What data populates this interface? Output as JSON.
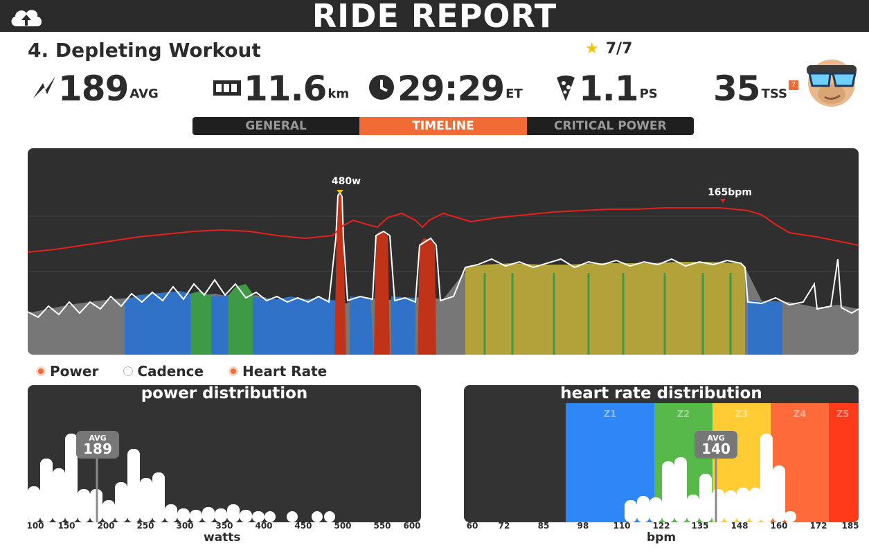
{
  "header": {
    "title": "RIDE REPORT"
  },
  "workout": {
    "name": "4. Depleting Workout",
    "stars": "7/7"
  },
  "stats": [
    {
      "value": "189",
      "unit": "AVG",
      "icon": "lightning-icon"
    },
    {
      "value": "11.6",
      "unit": "km",
      "icon": "odometer-icon"
    },
    {
      "value": "29:29",
      "unit": "ET",
      "icon": "clock-icon"
    },
    {
      "value": "1.1",
      "unit": "PS",
      "icon": "pizza-icon"
    },
    {
      "value": "35",
      "unit": "TSS",
      "icon": "avatar"
    }
  ],
  "tabs": [
    {
      "label": "GENERAL",
      "active": false
    },
    {
      "label": "TIMELINE",
      "active": true
    },
    {
      "label": "CRITICAL POWER",
      "active": false
    }
  ],
  "timeline": {
    "power_peak_label": "480w",
    "hr_peak_label": "165bpm"
  },
  "legend": [
    {
      "label": "Power",
      "on": true
    },
    {
      "label": "Cadence",
      "on": false
    },
    {
      "label": "Heart Rate",
      "on": true
    }
  ],
  "power_dist": {
    "title": "power distribution",
    "xlabel": "watts",
    "ticks": [
      "100",
      "150",
      "200",
      "250",
      "300",
      "350",
      "400",
      "450",
      "500",
      "550",
      "600"
    ],
    "avg_label": "AVG",
    "avg_value": "189"
  },
  "hr_dist": {
    "title": "heart rate distribution",
    "xlabel": "bpm",
    "ticks": [
      "60",
      "72",
      "85",
      "98",
      "110",
      "122",
      "135",
      "148",
      "160",
      "172",
      "185"
    ],
    "zones": [
      "Z1",
      "Z2",
      "Z3",
      "Z4",
      "Z5"
    ],
    "avg_label": "AVG",
    "avg_value": "140"
  },
  "colors": {
    "accent": "#f26a36",
    "dark": "#2b2b2b",
    "z1": "#2f86f6",
    "z2": "#57b94a",
    "z3": "#ffcc33",
    "z4": "#ff6a3a",
    "z5": "#ff3a1a"
  }
}
